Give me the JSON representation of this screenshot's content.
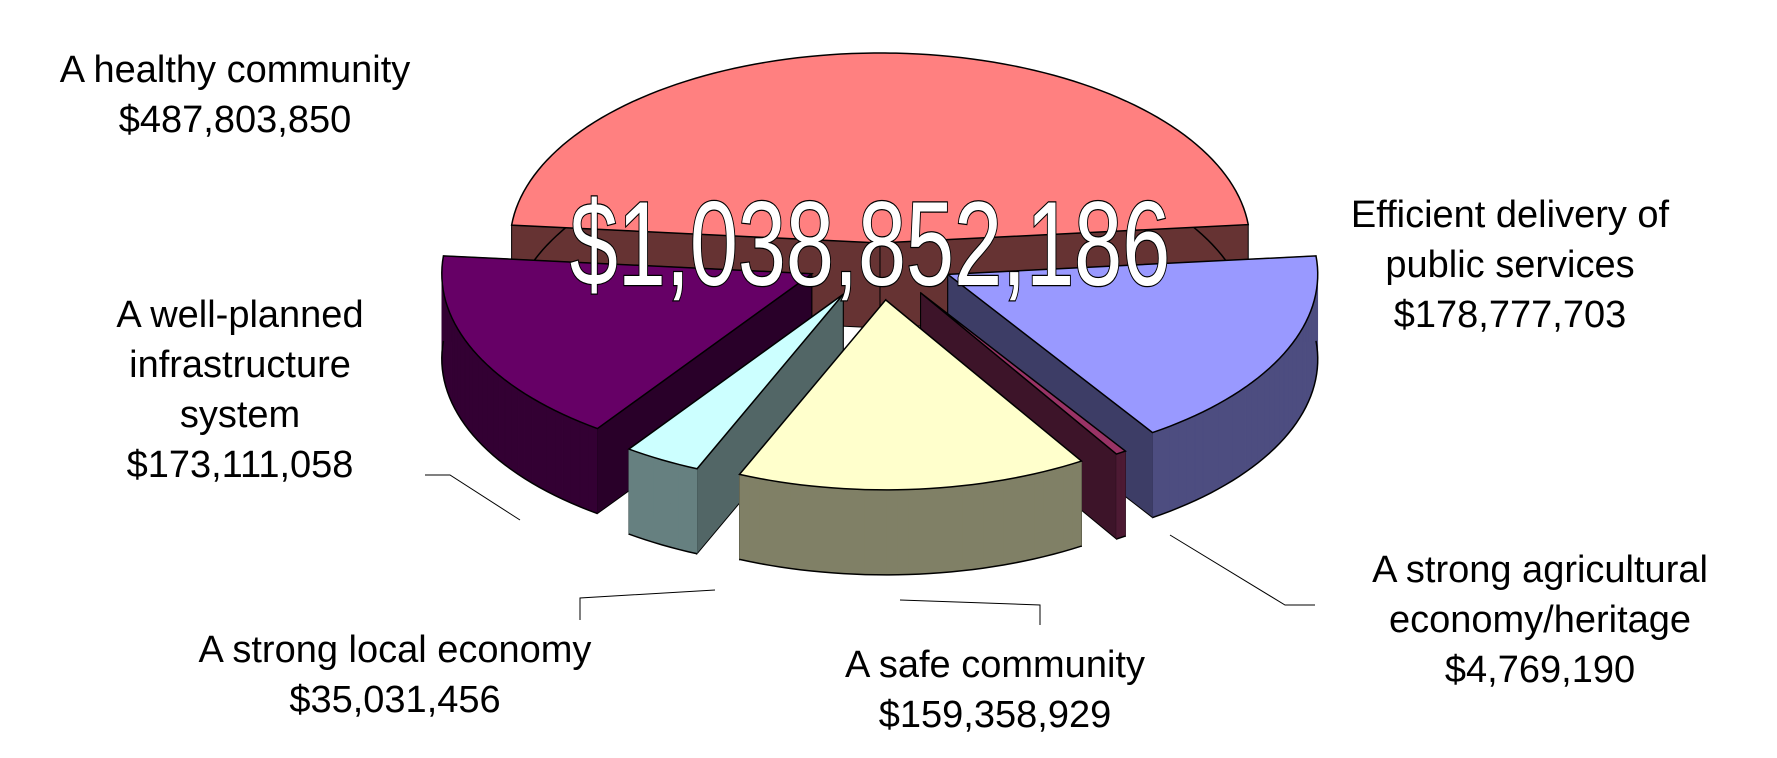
{
  "chart_data": {
    "type": "pie",
    "annotation": "$1,038,852,186",
    "categories": [
      "A healthy community",
      "Efficient delivery of public services",
      "A strong agricultural economy/heritage",
      "A safe community",
      "A strong local economy",
      "A well-planned infrastructure system"
    ],
    "values": [
      487803850,
      178777703,
      4769190,
      159358929,
      35031456,
      173111058
    ],
    "value_labels": [
      "$487,803,850",
      "$178,777,703",
      "$4,769,190",
      "$159,358,929",
      "$35,031,456",
      "$173,111,058"
    ],
    "colors": [
      "#ff8080",
      "#9999ff",
      "#993366",
      "#ffffcc",
      "#ccffff",
      "#660066"
    ]
  }
}
